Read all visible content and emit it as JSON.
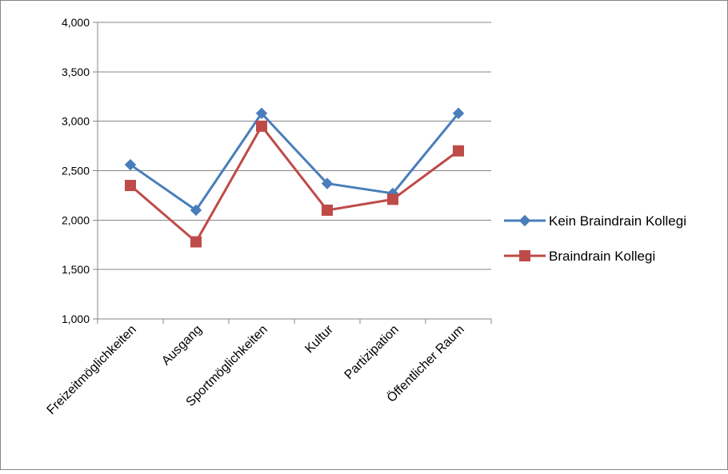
{
  "chart_data": {
    "type": "line",
    "categories": [
      "Freizeitmöglichkeiten",
      "Ausgang",
      "Sportmöglichkeiten",
      "Kultur",
      "Partizipation",
      "Öffentlicher Raum"
    ],
    "series": [
      {
        "name": "Kein Braindrain Kollegi",
        "values": [
          2.56,
          2.1,
          3.08,
          2.37,
          2.27,
          3.08
        ],
        "color": "#4a7ebb",
        "marker": "diamond"
      },
      {
        "name": "Braindrain Kollegi",
        "values": [
          2.35,
          1.78,
          2.95,
          2.1,
          2.21,
          2.7
        ],
        "color": "#be4b48",
        "marker": "square"
      }
    ],
    "ylim": [
      1.0,
      4.0
    ],
    "yticks": [
      "1,000",
      "1,500",
      "2,000",
      "2,500",
      "3,000",
      "3,500",
      "4,000"
    ],
    "ytick_values": [
      1.0,
      1.5,
      2.0,
      2.5,
      3.0,
      3.5,
      4.0
    ],
    "grid": "horizontal",
    "legend_position": "right",
    "title": "",
    "xlabel": "",
    "ylabel": ""
  }
}
